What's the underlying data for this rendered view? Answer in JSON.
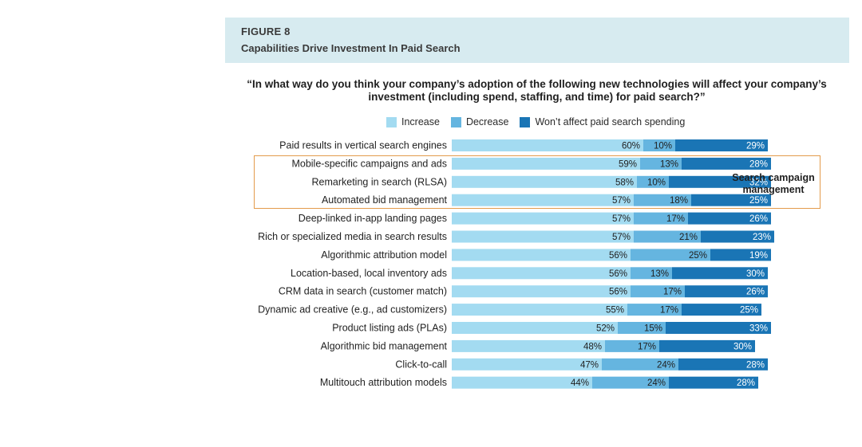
{
  "header": {
    "figure_label": "FIGURE 8",
    "title": "Capabilities Drive Investment In Paid Search"
  },
  "question": "“In what way do you think your company’s adoption of the following new technologies will affect your company’s investment (including spend, staffing, and time) for paid search?”",
  "annotation": "Search campaign management",
  "colors": {
    "increase": "#a3dbf1",
    "decrease": "#65b5e0",
    "wont_affect": "#1a75b5",
    "highlight_border": "#e39b4b",
    "header_band": "#d7ebf0"
  },
  "legend": [
    {
      "label": "Increase",
      "color": "#a3dbf1"
    },
    {
      "label": "Decrease",
      "color": "#65b5e0"
    },
    {
      "label": "Won’t affect paid search spending",
      "color": "#1a75b5"
    }
  ],
  "chart_data": {
    "type": "bar",
    "orientation": "horizontal",
    "stacked": true,
    "xlim": [
      0,
      100
    ],
    "categories": [
      "Paid results in vertical search engines",
      "Mobile-specific campaigns and ads",
      "Remarketing in search (RLSA)",
      "Automated bid management",
      "Deep-linked in-app landing pages",
      "Rich or specialized media in search results",
      "Algorithmic attribution model",
      "Location-based, local inventory ads",
      "CRM data in search (customer match)",
      "Dynamic ad creative (e.g., ad customizers)",
      "Product listing ads (PLAs)",
      "Algorithmic bid management",
      "Click-to-call",
      "Multitouch attribution models"
    ],
    "series": [
      {
        "name": "Increase",
        "values": [
          60,
          59,
          58,
          57,
          57,
          57,
          56,
          56,
          56,
          55,
          52,
          48,
          47,
          44
        ]
      },
      {
        "name": "Decrease",
        "values": [
          10,
          13,
          10,
          18,
          17,
          21,
          25,
          13,
          17,
          17,
          15,
          17,
          24,
          24
        ]
      },
      {
        "name": "Won’t affect paid search spending",
        "values": [
          29,
          28,
          32,
          25,
          26,
          23,
          19,
          30,
          26,
          25,
          33,
          30,
          28,
          28
        ]
      }
    ],
    "highlighted_categories": [
      "Mobile-specific campaigns and ads",
      "Remarketing in search (RLSA)",
      "Automated bid management"
    ],
    "legend_position": "top"
  }
}
